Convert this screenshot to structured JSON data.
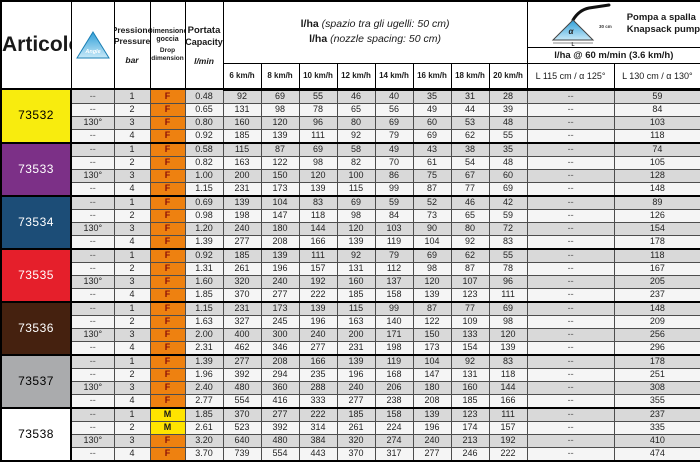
{
  "header": {
    "articolo": "Articolo",
    "angle_icon_label": "Angle",
    "pressione_it": "Pressione",
    "pressione_en": "Pressure",
    "pressione_unit": "bar",
    "dimensione_it": "Dimensione goccia",
    "dimensione_en": "Drop dimension",
    "portata_it": "Portata",
    "portata_en": "Capacity",
    "portata_unit": "l/min",
    "lha_bold": "l/ha",
    "lha_it": "(spazio tra gli ugelli: 50 cm)",
    "lha_en": "(nozzle spacing: 50 cm)",
    "speeds": [
      "6 km/h",
      "8 km/h",
      "10 km/h",
      "12 km/h",
      "14 km/h",
      "16 km/h",
      "18 km/h",
      "20 km/h"
    ],
    "pump_title_it": "Pompa a spalla",
    "pump_title_en": "Knapsack pump",
    "pump_rate": "l/ha @ 60 m/min (3.6 km/h)",
    "pump_col_l115": "L 115 cm / α 125°",
    "pump_col_l130": "L 130 cm / α 130°",
    "pump_icon_alpha": "α",
    "pump_icon_dist": "30 cm",
    "pump_icon_len": "L"
  },
  "colors": {
    "row_odd": "#d9d9d9",
    "row_even": "#f5f5f5",
    "drop_F_bg": "#ee8110",
    "drop_F_text": "#8d1007",
    "drop_M_bg": "#ffe400",
    "drop_M_text": "#1a1a1a",
    "triangle_blue": "#2f9fd8",
    "triangle_blue_light": "#c8e9f8"
  },
  "groups": [
    {
      "article": "73532",
      "color": "#f8ec0e",
      "text_color": "#000000",
      "rows": [
        {
          "angle": "--",
          "pressure": "1",
          "drop": "F",
          "capacity": "0.48",
          "speeds": [
            92,
            69,
            55,
            46,
            40,
            35,
            31,
            28
          ],
          "l115": "--",
          "l130": "59"
        },
        {
          "angle": "--",
          "pressure": "2",
          "drop": "F",
          "capacity": "0.65",
          "speeds": [
            131,
            98,
            78,
            65,
            56,
            49,
            44,
            39
          ],
          "l115": "--",
          "l130": "84"
        },
        {
          "angle": "130°",
          "pressure": "3",
          "drop": "F",
          "capacity": "0.80",
          "speeds": [
            160,
            120,
            96,
            80,
            69,
            60,
            53,
            48
          ],
          "l115": "--",
          "l130": "103"
        },
        {
          "angle": "--",
          "pressure": "4",
          "drop": "F",
          "capacity": "0.92",
          "speeds": [
            185,
            139,
            111,
            92,
            79,
            69,
            62,
            55
          ],
          "l115": "--",
          "l130": "118"
        }
      ]
    },
    {
      "article": "73533",
      "color": "#7c3087",
      "text_color": "#ffffff",
      "rows": [
        {
          "angle": "--",
          "pressure": "1",
          "drop": "F",
          "capacity": "0.58",
          "speeds": [
            115,
            87,
            69,
            58,
            49,
            43,
            38,
            35
          ],
          "l115": "--",
          "l130": "74"
        },
        {
          "angle": "--",
          "pressure": "2",
          "drop": "F",
          "capacity": "0.82",
          "speeds": [
            163,
            122,
            98,
            82,
            70,
            61,
            54,
            48
          ],
          "l115": "--",
          "l130": "105"
        },
        {
          "angle": "130°",
          "pressure": "3",
          "drop": "F",
          "capacity": "1.00",
          "speeds": [
            200,
            150,
            120,
            100,
            86,
            75,
            67,
            60
          ],
          "l115": "--",
          "l130": "128"
        },
        {
          "angle": "--",
          "pressure": "4",
          "drop": "F",
          "capacity": "1.15",
          "speeds": [
            231,
            173,
            139,
            115,
            99,
            87,
            77,
            69
          ],
          "l115": "--",
          "l130": "148"
        }
      ]
    },
    {
      "article": "73534",
      "color": "#1c4d77",
      "text_color": "#ffffff",
      "rows": [
        {
          "angle": "--",
          "pressure": "1",
          "drop": "F",
          "capacity": "0.69",
          "speeds": [
            139,
            104,
            83,
            69,
            59,
            52,
            46,
            42
          ],
          "l115": "--",
          "l130": "89"
        },
        {
          "angle": "--",
          "pressure": "2",
          "drop": "F",
          "capacity": "0.98",
          "speeds": [
            198,
            147,
            118,
            98,
            84,
            73,
            65,
            59
          ],
          "l115": "--",
          "l130": "126"
        },
        {
          "angle": "130°",
          "pressure": "3",
          "drop": "F",
          "capacity": "1.20",
          "speeds": [
            240,
            180,
            144,
            120,
            103,
            90,
            80,
            72
          ],
          "l115": "--",
          "l130": "154"
        },
        {
          "angle": "--",
          "pressure": "4",
          "drop": "F",
          "capacity": "1.39",
          "speeds": [
            277,
            208,
            166,
            139,
            119,
            104,
            92,
            83
          ],
          "l115": "--",
          "l130": "178"
        }
      ]
    },
    {
      "article": "73535",
      "color": "#e51f2b",
      "text_color": "#ffffff",
      "rows": [
        {
          "angle": "--",
          "pressure": "1",
          "drop": "F",
          "capacity": "0.92",
          "speeds": [
            185,
            139,
            111,
            92,
            79,
            69,
            62,
            55
          ],
          "l115": "--",
          "l130": "118"
        },
        {
          "angle": "--",
          "pressure": "2",
          "drop": "F",
          "capacity": "1.31",
          "speeds": [
            261,
            196,
            157,
            131,
            112,
            98,
            87,
            78
          ],
          "l115": "--",
          "l130": "167"
        },
        {
          "angle": "130°",
          "pressure": "3",
          "drop": "F",
          "capacity": "1.60",
          "speeds": [
            320,
            240,
            192,
            160,
            137,
            120,
            107,
            96
          ],
          "l115": "--",
          "l130": "205"
        },
        {
          "angle": "--",
          "pressure": "4",
          "drop": "F",
          "capacity": "1.85",
          "speeds": [
            370,
            277,
            222,
            185,
            158,
            139,
            123,
            111
          ],
          "l115": "--",
          "l130": "237"
        }
      ]
    },
    {
      "article": "73536",
      "color": "#45210f",
      "text_color": "#ffffff",
      "rows": [
        {
          "angle": "--",
          "pressure": "1",
          "drop": "F",
          "capacity": "1.15",
          "speeds": [
            231,
            173,
            139,
            115,
            99,
            87,
            77,
            69
          ],
          "l115": "--",
          "l130": "148"
        },
        {
          "angle": "--",
          "pressure": "2",
          "drop": "F",
          "capacity": "1.63",
          "speeds": [
            327,
            245,
            196,
            163,
            140,
            122,
            109,
            98
          ],
          "l115": "--",
          "l130": "209"
        },
        {
          "angle": "130°",
          "pressure": "3",
          "drop": "F",
          "capacity": "2.00",
          "speeds": [
            400,
            300,
            240,
            200,
            171,
            150,
            133,
            120
          ],
          "l115": "--",
          "l130": "256"
        },
        {
          "angle": "--",
          "pressure": "4",
          "drop": "F",
          "capacity": "2.31",
          "speeds": [
            462,
            346,
            277,
            231,
            198,
            173,
            154,
            139
          ],
          "l115": "--",
          "l130": "296"
        }
      ]
    },
    {
      "article": "73537",
      "color": "#aaabad",
      "text_color": "#000000",
      "rows": [
        {
          "angle": "--",
          "pressure": "1",
          "drop": "F",
          "capacity": "1.39",
          "speeds": [
            277,
            208,
            166,
            139,
            119,
            104,
            92,
            83
          ],
          "l115": "--",
          "l130": "178"
        },
        {
          "angle": "--",
          "pressure": "2",
          "drop": "F",
          "capacity": "1.96",
          "speeds": [
            392,
            294,
            235,
            196,
            168,
            147,
            131,
            118
          ],
          "l115": "--",
          "l130": "251"
        },
        {
          "angle": "130°",
          "pressure": "3",
          "drop": "F",
          "capacity": "2.40",
          "speeds": [
            480,
            360,
            288,
            240,
            206,
            180,
            160,
            144
          ],
          "l115": "--",
          "l130": "308"
        },
        {
          "angle": "--",
          "pressure": "4",
          "drop": "F",
          "capacity": "2.77",
          "speeds": [
            554,
            416,
            333,
            277,
            238,
            208,
            185,
            166
          ],
          "l115": "--",
          "l130": "355"
        }
      ]
    },
    {
      "article": "73538",
      "color": "#ffffff",
      "text_color": "#000000",
      "rows": [
        {
          "angle": "--",
          "pressure": "1",
          "drop": "M",
          "capacity": "1.85",
          "speeds": [
            370,
            277,
            222,
            185,
            158,
            139,
            123,
            111
          ],
          "l115": "--",
          "l130": "237"
        },
        {
          "angle": "--",
          "pressure": "2",
          "drop": "M",
          "capacity": "2.61",
          "speeds": [
            523,
            392,
            314,
            261,
            224,
            196,
            174,
            157
          ],
          "l115": "--",
          "l130": "335"
        },
        {
          "angle": "130°",
          "pressure": "3",
          "drop": "F",
          "capacity": "3.20",
          "speeds": [
            640,
            480,
            384,
            320,
            274,
            240,
            213,
            192
          ],
          "l115": "--",
          "l130": "410"
        },
        {
          "angle": "--",
          "pressure": "4",
          "drop": "F",
          "capacity": "3.70",
          "speeds": [
            739,
            554,
            443,
            370,
            317,
            277,
            246,
            222
          ],
          "l115": "--",
          "l130": "474"
        }
      ]
    }
  ]
}
